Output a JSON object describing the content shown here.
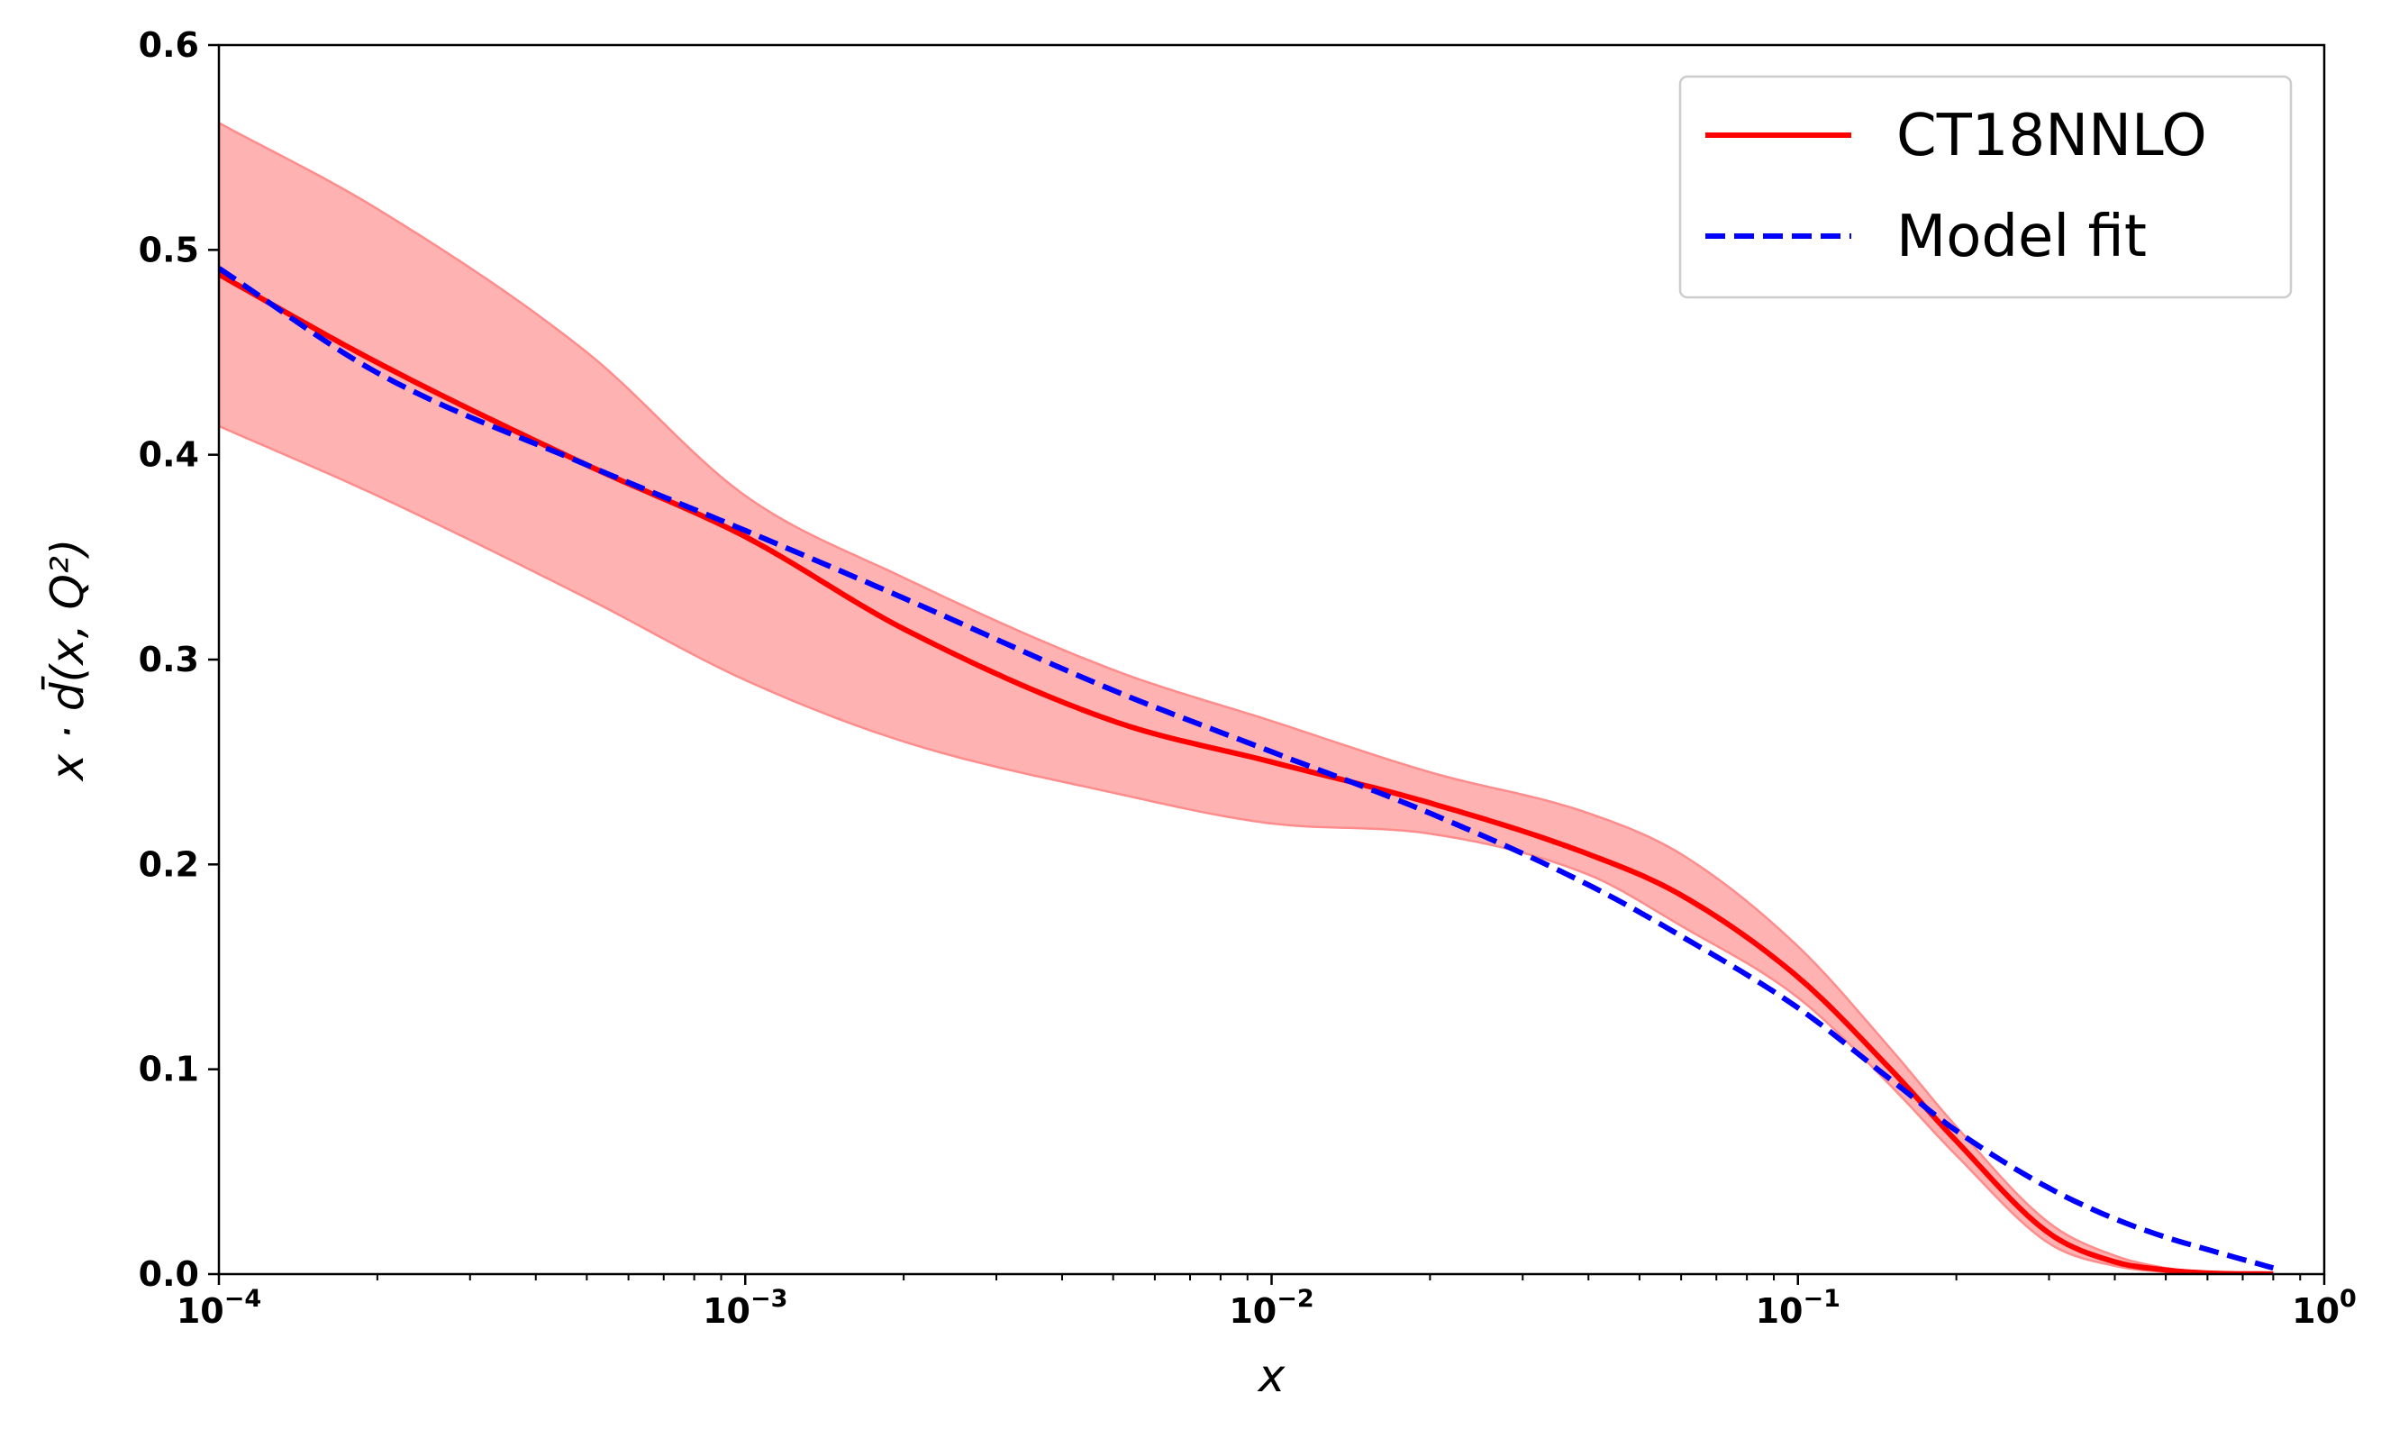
{
  "chart_data": {
    "type": "line",
    "title": "",
    "xlabel": "x",
    "ylabel": "x · d̄(x, Q²)",
    "xscale": "log",
    "xlim": [
      0.0001,
      1
    ],
    "ylim": [
      0.0,
      0.6
    ],
    "grid": false,
    "legend_position": "top-right",
    "x_ticks": [
      {
        "value": 0.0001,
        "base": "10",
        "exp": "−4"
      },
      {
        "value": 0.001,
        "base": "10",
        "exp": "−3"
      },
      {
        "value": 0.01,
        "base": "10",
        "exp": "−2"
      },
      {
        "value": 0.1,
        "base": "10",
        "exp": "−1"
      },
      {
        "value": 1,
        "base": "10",
        "exp": "0"
      }
    ],
    "y_ticks": [
      {
        "value": 0.0,
        "label": "0.0"
      },
      {
        "value": 0.1,
        "label": "0.1"
      },
      {
        "value": 0.2,
        "label": "0.2"
      },
      {
        "value": 0.3,
        "label": "0.3"
      },
      {
        "value": 0.4,
        "label": "0.4"
      },
      {
        "value": 0.5,
        "label": "0.5"
      },
      {
        "value": 0.6,
        "label": "0.6"
      }
    ],
    "series": [
      {
        "name": "CT18NNLO",
        "style": "solid",
        "color": "#ff0000",
        "x": [
          0.0001,
          0.0002,
          0.0005,
          0.001,
          0.002,
          0.005,
          0.01,
          0.02,
          0.04,
          0.06,
          0.1,
          0.15,
          0.2,
          0.3,
          0.4,
          0.5,
          0.6,
          0.8
        ],
        "y": [
          0.488,
          0.445,
          0.395,
          0.36,
          0.315,
          0.27,
          0.25,
          0.23,
          0.205,
          0.185,
          0.145,
          0.1,
          0.065,
          0.02,
          0.006,
          0.002,
          0.0005,
          0.0
        ],
        "band_upper": [
          0.562,
          0.52,
          0.45,
          0.38,
          0.34,
          0.295,
          0.27,
          0.245,
          0.225,
          0.205,
          0.16,
          0.11,
          0.072,
          0.025,
          0.009,
          0.003,
          0.001,
          0.0
        ],
        "band_lower": [
          0.414,
          0.38,
          0.33,
          0.29,
          0.26,
          0.235,
          0.22,
          0.215,
          0.195,
          0.17,
          0.135,
          0.092,
          0.058,
          0.015,
          0.004,
          0.001,
          0.0,
          0.0
        ]
      },
      {
        "name": "Model fit",
        "style": "dashed",
        "color": "#0000ff",
        "x": [
          0.0001,
          0.0002,
          0.0005,
          0.001,
          0.002,
          0.005,
          0.01,
          0.02,
          0.04,
          0.06,
          0.1,
          0.15,
          0.2,
          0.3,
          0.4,
          0.5,
          0.6,
          0.8
        ],
        "y": [
          0.491,
          0.44,
          0.395,
          0.363,
          0.33,
          0.285,
          0.255,
          0.225,
          0.19,
          0.165,
          0.13,
          0.095,
          0.07,
          0.042,
          0.027,
          0.018,
          0.012,
          0.003
        ]
      }
    ],
    "band_color": "#ffb2b2",
    "band_edge_color": "#ff8c8c"
  }
}
